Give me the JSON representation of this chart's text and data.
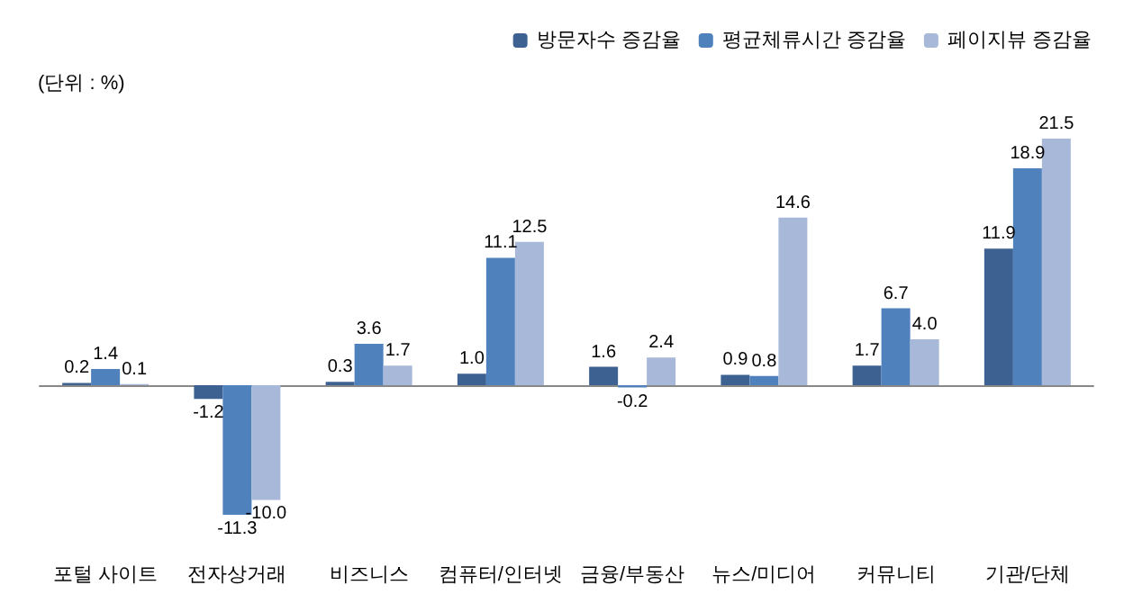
{
  "chart_data": {
    "type": "bar",
    "ylabel": "(단위 : %)",
    "categories": [
      "포털 사이트",
      "전자상거래",
      "비즈니스",
      "컴퓨터/인터넷",
      "금융/부동산",
      "뉴스/미디어",
      "커뮤니티",
      "기관/단체"
    ],
    "series": [
      {
        "name": "방문자수 증감율",
        "color": "#3d6292",
        "values": [
          0.2,
          -1.2,
          0.3,
          1.0,
          1.6,
          0.9,
          1.7,
          11.9
        ],
        "value_labels": [
          "0.2",
          "-1.2",
          "0.3",
          "1.0",
          "1.6",
          "0.9",
          "1.7",
          "11.9"
        ]
      },
      {
        "name": "평균체류시간 증감율",
        "color": "#4f81bd",
        "values": [
          1.4,
          -11.3,
          3.6,
          11.1,
          -0.2,
          0.8,
          6.7,
          18.9
        ],
        "value_labels": [
          "1.4",
          "-11.3",
          "3.6",
          "11.1",
          "-0.2",
          "0.8",
          "6.7",
          "18.9"
        ]
      },
      {
        "name": "페이지뷰 증감율",
        "color": "#a8b8d8",
        "values": [
          0.1,
          -10.0,
          1.7,
          12.5,
          2.4,
          14.6,
          4.0,
          21.5
        ],
        "value_labels": [
          "0.1",
          "-10.0",
          "1.7",
          "12.5",
          "2.4",
          "14.6",
          "4.0",
          "21.5"
        ]
      }
    ],
    "legend": "top right",
    "grid": false
  }
}
